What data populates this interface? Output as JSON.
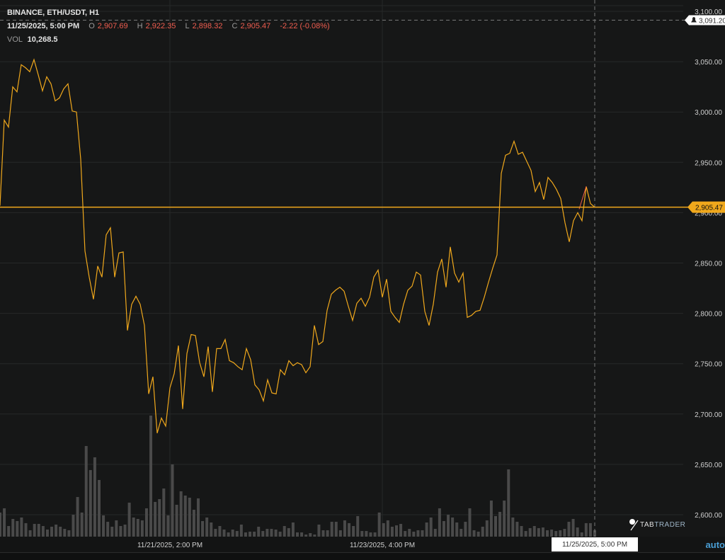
{
  "header": {
    "title": "BINANCE, ETH/USDT, H1",
    "datetime": "11/25/2025, 5:00 PM",
    "open_label": "O",
    "open": "2,907.69",
    "high_label": "H",
    "high": "2,922.35",
    "low_label": "L",
    "low": "2,898.32",
    "close_label": "C",
    "close": "2,905.47",
    "change": "-2.22 (-0.08%)",
    "vol_label": "VOL",
    "vol": "10,268.5"
  },
  "crosshair": {
    "time_label": "11/25/2025, 5:00 PM",
    "price_label": "3,091.20",
    "price": 3091.2
  },
  "last_price": {
    "label": "2,905.47",
    "value": 2905.47
  },
  "logo": {
    "part1": "TAB",
    "part2": "TRADER"
  },
  "scale_mode": "auto",
  "colors": {
    "background": "#161717",
    "line": "#f0a81c",
    "grid": "#262828",
    "volume": "#4a4a4a",
    "down": "#ef5d4f",
    "last_price": "#f0a81c"
  },
  "chart_data": {
    "type": "line",
    "title": "BINANCE, ETH/USDT, H1",
    "ylim": [
      2590,
      3110
    ],
    "y_ticks": [
      "3,100.00",
      "3,050.00",
      "3,000.00",
      "2,950.00",
      "2,900.00",
      "2,850.00",
      "2,800.00",
      "2,750.00",
      "2,700.00",
      "2,650.00",
      "2,600.00"
    ],
    "y_tick_values": [
      3100,
      3050,
      3000,
      2950,
      2900,
      2850,
      2800,
      2750,
      2700,
      2650,
      2600
    ],
    "x_ticks": [
      {
        "label": "11/21/2025, 2:00 PM",
        "index": 40
      },
      {
        "label": "11/23/2025, 4:00 PM",
        "index": 90
      }
    ],
    "grid": true,
    "interval": "1h",
    "close": [
      2907,
      2992,
      2985,
      3025,
      3020,
      3047,
      3044,
      3040,
      3052,
      3037,
      3021,
      3035,
      3028,
      3011,
      3014,
      3023,
      3028,
      3001,
      3000,
      2953,
      2862,
      2836,
      2814,
      2847,
      2836,
      2878,
      2885,
      2836,
      2860,
      2861,
      2783,
      2809,
      2817,
      2809,
      2788,
      2720,
      2737,
      2681,
      2696,
      2688,
      2726,
      2740,
      2768,
      2705,
      2760,
      2779,
      2778,
      2751,
      2737,
      2767,
      2722,
      2765,
      2765,
      2774,
      2753,
      2751,
      2747,
      2744,
      2765,
      2754,
      2729,
      2724,
      2713,
      2734,
      2721,
      2720,
      2744,
      2739,
      2753,
      2748,
      2751,
      2749,
      2741,
      2747,
      2788,
      2769,
      2772,
      2803,
      2819,
      2823,
      2826,
      2822,
      2807,
      2793,
      2810,
      2815,
      2807,
      2816,
      2836,
      2843,
      2816,
      2834,
      2802,
      2796,
      2791,
      2809,
      2823,
      2827,
      2841,
      2838,
      2802,
      2788,
      2809,
      2841,
      2854,
      2826,
      2866,
      2840,
      2831,
      2840,
      2796,
      2798,
      2802,
      2803,
      2816,
      2831,
      2845,
      2858,
      2939,
      2957,
      2959,
      2971,
      2958,
      2960,
      2951,
      2942,
      2921,
      2930,
      2913,
      2935,
      2930,
      2923,
      2914,
      2890,
      2871,
      2892,
      2900,
      2892,
      2926,
      2909,
      2905.47
    ],
    "volume_thousands": [
      38.8,
      45.6,
      17.1,
      28.5,
      25.1,
      30.8,
      21.7,
      10.3,
      20.5,
      20.5,
      17.1,
      11.4,
      16,
      19.4,
      16,
      12.5,
      10.3,
      35.3,
      63.8,
      38.8,
      145.9,
      107.2,
      127.7,
      91.2,
      34.2,
      23.9,
      16,
      26.2,
      17.1,
      19.4,
      54.7,
      30.8,
      28.5,
      26.2,
      45.6,
      194.9,
      55.9,
      60.4,
      77.5,
      34.2,
      116.3,
      51.3,
      73,
      66.1,
      62.7,
      43.3,
      61.6,
      25.1,
      30.8,
      22.8,
      12.5,
      17.1,
      11.4,
      6.8,
      11.4,
      9.1,
      19.4,
      6.8,
      8,
      8,
      16,
      9.1,
      12.5,
      12.5,
      11.4,
      8,
      17.1,
      13.7,
      22.8,
      6.8,
      6.8,
      3.4,
      5.7,
      3.4,
      19.4,
      10.3,
      10.3,
      23.9,
      23.9,
      10.3,
      26.2,
      21.7,
      17.1,
      33.1,
      9.1,
      9.1,
      6.8,
      6.8,
      38.8,
      21.7,
      26.2,
      16,
      18.2,
      20.5,
      9.1,
      12.5,
      8,
      10.3,
      10.3,
      22.8,
      30.8,
      12.5,
      45.6,
      25.1,
      35.3,
      30.8,
      22.8,
      12.5,
      23.9,
      45.6,
      10.3,
      8,
      16,
      26.2,
      58.1,
      33.1,
      39.9,
      58.1,
      108.3,
      30.8,
      23.9,
      17.1,
      9.1,
      13.7,
      17.1,
      13.7,
      14.8,
      10.3,
      11.4,
      9.1,
      10.3,
      12.5,
      23.9,
      28.5,
      14.8,
      6.8,
      21.7,
      21.7,
      10.27
    ]
  }
}
